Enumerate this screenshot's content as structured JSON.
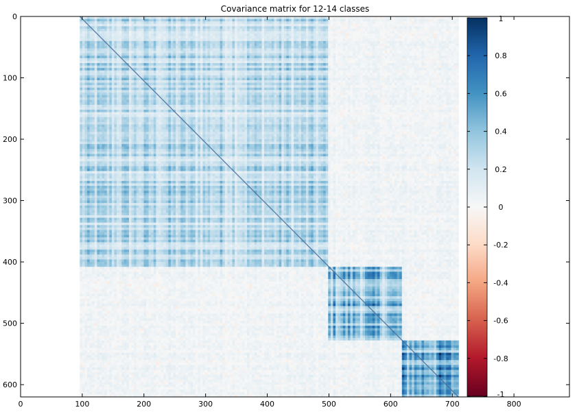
{
  "chart_data": {
    "type": "heatmap",
    "title": "Covariance matrix for 12-14 classes",
    "xlabel": "",
    "ylabel": "",
    "xlim": [
      0,
      890
    ],
    "ylim": [
      0,
      620
    ],
    "y_inverted": true,
    "x_ticks": [
      "0",
      "100",
      "200",
      "300",
      "400",
      "500",
      "600",
      "700",
      "800"
    ],
    "y_ticks": [
      "0",
      "100",
      "200",
      "300",
      "400",
      "500",
      "600"
    ],
    "x_tick_values": [
      0,
      100,
      200,
      300,
      400,
      500,
      600,
      700,
      800
    ],
    "y_tick_values": [
      0,
      100,
      200,
      300,
      400,
      500,
      600
    ],
    "matrix_extent": {
      "x": [
        96,
        710
      ],
      "y": [
        0,
        620
      ]
    },
    "colorbar": {
      "range": [
        -1,
        1
      ],
      "ticks": [
        "1",
        "0.8",
        "0.6",
        "0.4",
        "0.2",
        "0",
        "-0.2",
        "-0.4",
        "-0.6",
        "-0.8",
        "-1"
      ],
      "tick_values": [
        1,
        0.8,
        0.6,
        0.4,
        0.2,
        0,
        -0.2,
        -0.4,
        -0.6,
        -0.8,
        -1
      ],
      "colormap": "RdBu",
      "stops": [
        {
          "value": -1,
          "color": "#67001f"
        },
        {
          "value": -0.8,
          "color": "#b2182b"
        },
        {
          "value": -0.6,
          "color": "#d6604d"
        },
        {
          "value": -0.4,
          "color": "#f4a582"
        },
        {
          "value": -0.2,
          "color": "#fddbc7"
        },
        {
          "value": 0,
          "color": "#f7f7f7"
        },
        {
          "value": 0.2,
          "color": "#d1e5f0"
        },
        {
          "value": 0.4,
          "color": "#92c5de"
        },
        {
          "value": 0.6,
          "color": "#4393c3"
        },
        {
          "value": 0.8,
          "color": "#2166ac"
        },
        {
          "value": 1,
          "color": "#053061"
        }
      ]
    },
    "class_blocks": [
      {
        "range": [
          96,
          500
        ],
        "within_block_value": 0.3
      },
      {
        "range": [
          500,
          620
        ],
        "within_block_value": 0.5
      },
      {
        "range": [
          620,
          710
        ],
        "within_block_value": 0.55
      }
    ],
    "off_block_value": 0.05,
    "diagonal_value": 1
  }
}
